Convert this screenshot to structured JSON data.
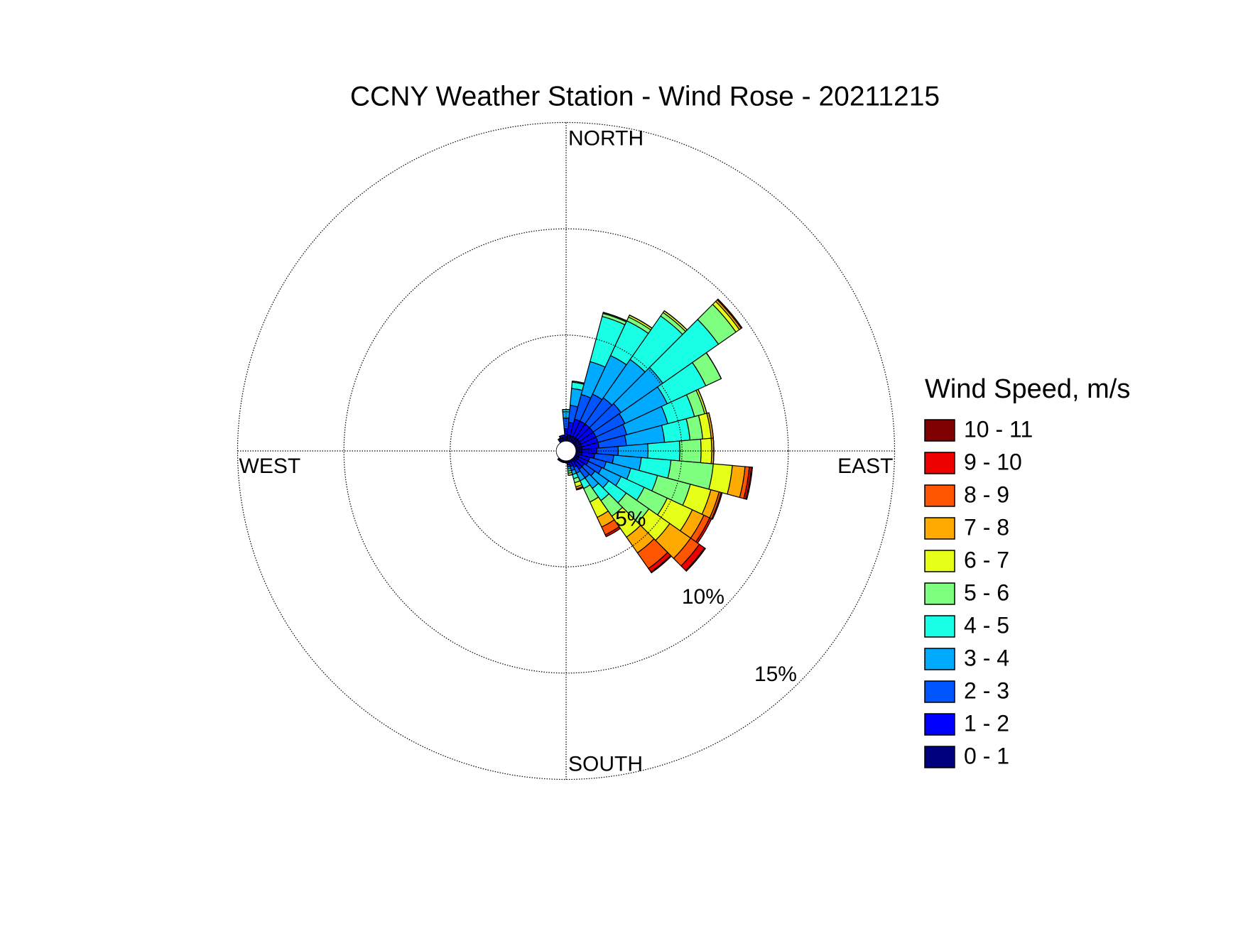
{
  "chart_data": {
    "type": "windrose",
    "title": "CCNY Weather Station - Wind Rose - 20211215",
    "legend_title": "Wind Speed, m/s",
    "direction_labels": {
      "north": "NORTH",
      "east": "EAST",
      "south": "SOUTH",
      "west": "WEST"
    },
    "x": [
      0,
      10,
      20,
      30,
      40,
      50,
      60,
      70,
      80,
      90,
      100,
      110,
      120,
      130,
      140,
      150,
      160,
      170,
      180,
      190,
      200,
      210,
      220,
      230,
      240,
      250,
      260,
      270,
      280,
      290,
      300,
      310,
      320,
      330,
      340,
      350
    ],
    "rlim": [
      0,
      15
    ],
    "rticks": [
      {
        "value": 5,
        "label": "5%"
      },
      {
        "value": 10,
        "label": "10%"
      },
      {
        "value": 15,
        "label": "15%"
      }
    ],
    "grid": true,
    "legend_position": "right",
    "series": [
      {
        "name": "0 - 1",
        "color": "#00007f",
        "values": [
          0.2,
          0.3,
          0.3,
          0.3,
          0.3,
          0.3,
          0.3,
          0.3,
          0.3,
          0.3,
          0.3,
          0.2,
          0.2,
          0.2,
          0.2,
          0.1,
          0.1,
          0.1,
          0.1,
          0.1,
          0.1,
          0.1,
          0.1,
          0,
          0,
          0,
          0,
          0,
          0,
          0,
          0,
          0,
          0,
          0.2,
          0.2,
          0.2
        ]
      },
      {
        "name": "1 - 2",
        "color": "#0000ff",
        "values": [
          0.4,
          0.6,
          0.8,
          0.8,
          0.8,
          0.8,
          0.8,
          0.8,
          0.8,
          0.7,
          0.6,
          0.5,
          0.5,
          0.4,
          0.4,
          0.3,
          0.2,
          0.1,
          0,
          0,
          0,
          0,
          0,
          0,
          0,
          0,
          0,
          0,
          0,
          0,
          0,
          0,
          0,
          0,
          0.1,
          0.1
        ]
      },
      {
        "name": "2 - 3",
        "color": "#0055ff",
        "values": [
          0.5,
          0.8,
          1.2,
          1.4,
          1.5,
          1.6,
          1.5,
          1.4,
          1.3,
          1.0,
          0.9,
          0.8,
          0.7,
          0.6,
          0.5,
          0.3,
          0.2,
          0.1,
          0,
          0,
          0,
          0,
          0,
          0,
          0,
          0,
          0,
          0,
          0,
          0,
          0,
          0,
          0,
          0,
          0,
          0
        ]
      },
      {
        "name": "3 - 4",
        "color": "#00aaff",
        "values": [
          0.3,
          0.8,
          1.6,
          2.0,
          2.2,
          2.4,
          2.2,
          2.0,
          1.8,
          1.4,
          1.3,
          1.2,
          1.0,
          0.8,
          0.6,
          0.4,
          0.2,
          0.1,
          0,
          0,
          0,
          0,
          0,
          0,
          0,
          0,
          0,
          0,
          0,
          0,
          0,
          0,
          0,
          0,
          0,
          0
        ]
      },
      {
        "name": "4 - 5",
        "color": "#19ffe5",
        "values": [
          0.1,
          0.3,
          2.2,
          1.8,
          2.5,
          3.2,
          2.0,
          1.3,
          1.2,
          1.5,
          1.4,
          1.3,
          1.2,
          1.0,
          0.7,
          0.4,
          0.2,
          0.1,
          0,
          0,
          0,
          0,
          0,
          0,
          0,
          0,
          0,
          0,
          0,
          0,
          0,
          0,
          0,
          0,
          0,
          0
        ]
      },
      {
        "name": "5 - 6",
        "color": "#7fff7f",
        "values": [
          0,
          0.05,
          0.15,
          0.2,
          0.2,
          1.0,
          0.8,
          0.5,
          0.6,
          1.0,
          2.0,
          1.6,
          1.2,
          1.3,
          0.9,
          0.7,
          0.2,
          0.1,
          0,
          0,
          0,
          0,
          0,
          0,
          0,
          0,
          0,
          0,
          0,
          0,
          0,
          0,
          0,
          0,
          0,
          0
        ]
      },
      {
        "name": "6 - 7",
        "color": "#e5ff19",
        "values": [
          0,
          0,
          0.05,
          0.1,
          0.1,
          0.2,
          0,
          0.1,
          0.4,
          0.5,
          0.9,
          1.0,
          1.3,
          1.2,
          1.2,
          0.8,
          0.2,
          0.1,
          0,
          0,
          0,
          0,
          0,
          0,
          0,
          0,
          0,
          0,
          0,
          0,
          0,
          0,
          0,
          0,
          0,
          0
        ]
      },
      {
        "name": "7 - 8",
        "color": "#ffaa00",
        "values": [
          0,
          0,
          0,
          0,
          0,
          0.1,
          0,
          0,
          0.1,
          0.1,
          0.6,
          0.4,
          0.6,
          1.2,
          0.9,
          0.5,
          0.1,
          0,
          0,
          0,
          0,
          0,
          0,
          0,
          0,
          0,
          0,
          0,
          0,
          0,
          0,
          0,
          0,
          0,
          0,
          0
        ]
      },
      {
        "name": "8 - 9",
        "color": "#ff5500",
        "values": [
          0,
          0,
          0,
          0,
          0,
          0.05,
          0,
          0,
          0,
          0,
          0.2,
          0.1,
          0.3,
          0.5,
          0.9,
          0.4,
          0.05,
          0,
          0,
          0,
          0,
          0,
          0,
          0,
          0,
          0,
          0,
          0,
          0,
          0,
          0,
          0,
          0,
          0,
          0,
          0
        ]
      },
      {
        "name": "9 - 10",
        "color": "#ee0000",
        "values": [
          0,
          0,
          0,
          0,
          0,
          0,
          0,
          0,
          0,
          0,
          0.1,
          0.05,
          0.1,
          0.3,
          0.2,
          0.1,
          0,
          0,
          0,
          0,
          0,
          0,
          0,
          0,
          0,
          0,
          0,
          0,
          0,
          0,
          0,
          0,
          0,
          0,
          0,
          0
        ]
      },
      {
        "name": "10 - 11",
        "color": "#7f0000",
        "values": [
          0,
          0,
          0,
          0,
          0,
          0,
          0,
          0,
          0,
          0,
          0.05,
          0,
          0,
          0.05,
          0.05,
          0,
          0,
          0,
          0,
          0,
          0,
          0,
          0,
          0,
          0,
          0,
          0,
          0,
          0,
          0,
          0,
          0,
          0,
          0,
          0,
          0
        ]
      }
    ]
  }
}
